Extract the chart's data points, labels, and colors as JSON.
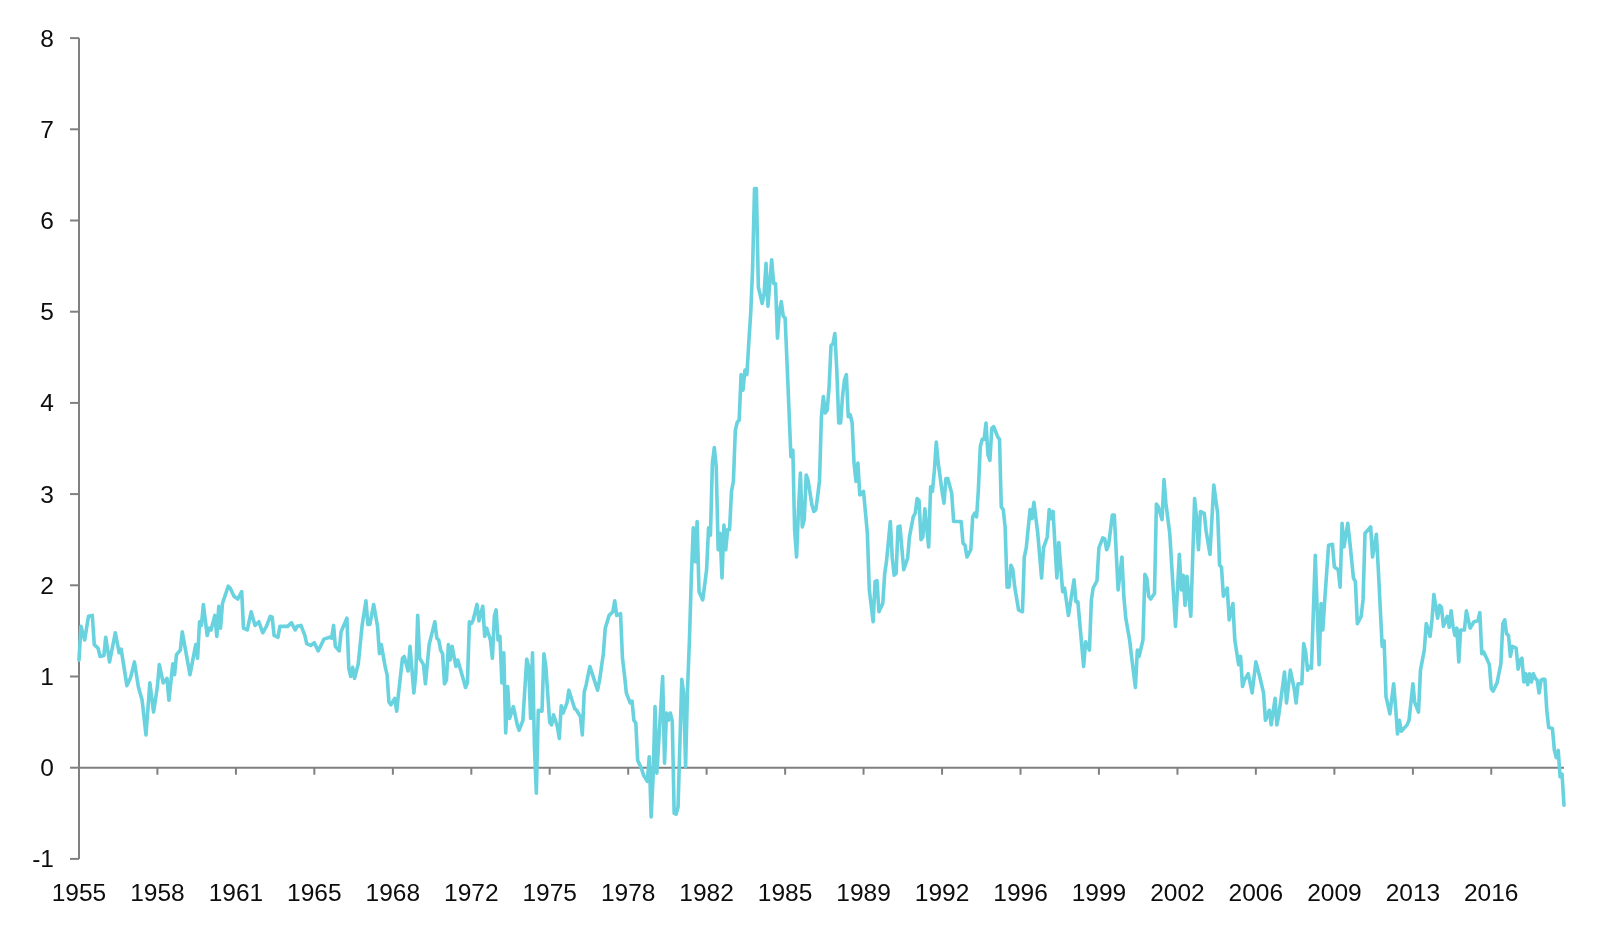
{
  "chart_data": {
    "type": "line",
    "x": [
      "1955-01",
      "1955-02",
      "1955-04",
      "1955-06",
      "1955-08",
      "1955-09",
      "1955-11",
      "1955-12",
      "1956-02",
      "1956-03",
      "1956-05",
      "1956-08",
      "1956-10",
      "1956-11",
      "1957-02",
      "1957-04",
      "1957-06",
      "1957-08",
      "1957-10",
      "1957-12",
      "1958-02",
      "1958-04",
      "1958-06",
      "1958-07",
      "1958-09",
      "1958-11",
      "1958-12",
      "1959-02",
      "1959-03",
      "1959-04",
      "1959-06",
      "1959-07",
      "1959-11",
      "1960-02",
      "1960-03",
      "1960-04",
      "1960-05",
      "1960-06",
      "1960-08",
      "1960-09",
      "1960-10",
      "1960-12",
      "1961-01",
      "1961-02",
      "1961-03",
      "1961-04",
      "1961-07",
      "1961-08",
      "1961-10",
      "1961-12",
      "1962-02",
      "1962-03",
      "1962-05",
      "1962-07",
      "1962-09",
      "1962-11",
      "1963-01",
      "1963-03",
      "1963-05",
      "1963-06",
      "1963-07",
      "1963-09",
      "1963-10",
      "1964-02",
      "1964-04",
      "1964-06",
      "1964-07",
      "1964-09",
      "1964-11",
      "1964-12",
      "1965-02",
      "1965-04",
      "1965-06",
      "1965-09",
      "1965-12",
      "1966-01",
      "1966-02",
      "1966-03",
      "1966-05",
      "1966-06",
      "1966-09",
      "1966-10",
      "1966-11",
      "1966-12",
      "1967-01",
      "1967-03",
      "1967-05",
      "1967-07",
      "1967-08",
      "1967-09",
      "1967-11",
      "1968-01",
      "1968-02",
      "1968-03",
      "1968-05",
      "1968-06",
      "1968-07",
      "1968-08",
      "1968-10",
      "1968-11",
      "1968-12",
      "1969-02",
      "1969-03",
      "1969-05",
      "1969-06",
      "1969-08",
      "1969-09",
      "1969-10",
      "1969-11",
      "1970-01",
      "1970-02",
      "1970-04",
      "1970-07",
      "1970-08",
      "1970-09",
      "1970-10",
      "1970-11",
      "1970-12",
      "1971-01",
      "1971-02",
      "1971-03",
      "1971-04",
      "1971-06",
      "1971-07",
      "1971-09",
      "1971-11",
      "1971-12",
      "1972-01",
      "1972-02",
      "1972-03",
      "1972-05",
      "1972-06",
      "1972-08",
      "1972-09",
      "1972-10",
      "1972-12",
      "1973-01",
      "1973-02",
      "1973-03",
      "1973-04",
      "1973-05",
      "1973-06",
      "1973-07",
      "1973-08",
      "1973-09",
      "1973-10",
      "1973-12",
      "1974-02",
      "1974-03",
      "1974-05",
      "1974-07",
      "1974-08",
      "1974-09",
      "1974-10",
      "1974-11",
      "1974-12",
      "1975-01",
      "1975-03",
      "1975-04",
      "1975-05",
      "1975-07",
      "1975-08",
      "1975-09",
      "1975-11",
      "1975-12",
      "1976-01",
      "1976-02",
      "1976-04",
      "1976-05",
      "1976-08",
      "1976-09",
      "1976-11",
      "1976-12",
      "1977-01",
      "1977-02",
      "1977-04",
      "1977-06",
      "1977-08",
      "1977-09",
      "1977-11",
      "1977-12",
      "1978-02",
      "1978-04",
      "1978-05",
      "1978-06",
      "1978-08",
      "1978-09",
      "1978-10",
      "1978-11",
      "1979-01",
      "1979-02",
      "1979-03",
      "1979-04",
      "1979-05",
      "1979-07",
      "1979-08",
      "1979-10",
      "1979-11",
      "1979-12",
      "1980-01",
      "1980-02",
      "1980-03",
      "1980-06",
      "1980-07",
      "1980-08",
      "1980-09",
      "1980-10",
      "1980-11",
      "1980-12",
      "1981-01",
      "1981-02",
      "1981-04",
      "1981-05",
      "1981-06",
      "1981-07",
      "1981-08",
      "1981-09",
      "1981-10",
      "1981-11",
      "1981-12",
      "1982-01",
      "1982-03",
      "1982-05",
      "1982-06",
      "1982-07",
      "1982-08",
      "1982-09",
      "1982-10",
      "1982-11",
      "1982-12",
      "1983-01",
      "1983-02",
      "1983-03",
      "1983-04",
      "1983-05",
      "1983-06",
      "1983-07",
      "1983-08",
      "1983-09",
      "1983-10",
      "1983-11",
      "1983-12",
      "1984-01",
      "1984-02",
      "1984-03",
      "1984-04",
      "1984-05",
      "1984-06",
      "1984-07",
      "1984-08",
      "1984-09",
      "1984-10",
      "1984-11",
      "1984-12",
      "1985-01",
      "1985-03",
      "1985-04",
      "1985-05",
      "1985-06",
      "1985-07",
      "1985-08",
      "1985-09",
      "1985-10",
      "1985-11",
      "1986-01",
      "1986-02",
      "1986-03",
      "1986-04",
      "1986-05",
      "1986-06",
      "1986-07",
      "1986-08",
      "1986-09",
      "1986-10",
      "1986-12",
      "1987-01",
      "1987-02",
      "1987-03",
      "1987-04",
      "1987-05",
      "1987-06",
      "1987-07",
      "1987-08",
      "1987-09",
      "1987-10",
      "1987-11",
      "1987-12",
      "1988-01",
      "1988-02",
      "1988-03",
      "1988-04",
      "1988-05",
      "1988-06",
      "1988-07",
      "1988-08",
      "1988-09",
      "1988-10",
      "1988-11",
      "1988-12",
      "1989-01",
      "1989-03",
      "1989-05",
      "1989-06",
      "1989-08",
      "1989-09",
      "1989-10",
      "1989-11",
      "1990-01",
      "1990-02",
      "1990-03",
      "1990-05",
      "1990-06",
      "1990-07",
      "1990-08",
      "1990-09",
      "1990-10",
      "1990-12",
      "1991-02",
      "1991-03",
      "1991-05",
      "1991-06",
      "1991-07",
      "1991-08",
      "1991-09",
      "1991-10",
      "1991-11",
      "1992-01",
      "1992-02",
      "1992-03",
      "1992-04",
      "1992-05",
      "1992-06",
      "1992-08",
      "1992-09",
      "1992-10",
      "1992-11",
      "1993-01",
      "1993-02",
      "1993-04",
      "1993-06",
      "1993-07",
      "1993-08",
      "1993-09",
      "1993-10",
      "1993-11",
      "1993-12",
      "1994-01",
      "1994-02",
      "1994-03",
      "1994-04",
      "1994-05",
      "1994-06",
      "1994-07",
      "1994-08",
      "1994-09",
      "1994-10",
      "1994-11",
      "1995-01",
      "1995-02",
      "1995-03",
      "1995-04",
      "1995-05",
      "1995-06",
      "1995-07",
      "1995-08",
      "1995-09",
      "1995-10",
      "1995-12",
      "1996-02",
      "1996-03",
      "1996-04",
      "1996-06",
      "1996-07",
      "1996-08",
      "1996-10",
      "1996-12",
      "1997-01",
      "1997-03",
      "1997-04",
      "1997-05",
      "1997-06",
      "1997-08",
      "1997-09",
      "1997-11",
      "1997-12",
      "1998-02",
      "1998-05",
      "1998-06",
      "1998-07",
      "1998-10",
      "1998-11",
      "1999-01",
      "1999-02",
      "1999-03",
      "1999-05",
      "1999-06",
      "1999-08",
      "1999-09",
      "1999-10",
      "1999-11",
      "2000-01",
      "2000-02",
      "2000-04",
      "2000-06",
      "2000-07",
      "2000-08",
      "2000-10",
      "2000-11",
      "2001-01",
      "2001-02",
      "2001-03",
      "2001-05",
      "2001-06",
      "2001-07",
      "2001-08",
      "2001-09",
      "2001-11",
      "2001-12",
      "2002-01",
      "2002-03",
      "2002-04",
      "2002-05",
      "2002-07",
      "2002-10",
      "2002-12",
      "2003-01",
      "2003-02",
      "2003-03",
      "2003-04",
      "2003-06",
      "2003-08",
      "2003-09",
      "2003-10",
      "2003-11",
      "2004-01",
      "2004-02",
      "2004-04",
      "2004-06",
      "2004-08",
      "2004-09",
      "2004-10",
      "2004-11",
      "2005-01",
      "2005-02",
      "2005-04",
      "2005-05",
      "2005-07",
      "2005-08",
      "2005-09",
      "2005-10",
      "2005-12",
      "2006-02",
      "2006-04",
      "2006-06",
      "2006-08",
      "2006-09",
      "2006-11",
      "2006-12",
      "2007-02",
      "2007-03",
      "2007-04",
      "2007-07",
      "2007-08",
      "2007-10",
      "2007-12",
      "2008-01",
      "2008-02",
      "2008-04",
      "2008-05",
      "2008-06",
      "2008-07",
      "2008-08",
      "2008-09",
      "2008-11",
      "2008-12",
      "2009-01",
      "2009-02",
      "2009-03",
      "2009-04",
      "2009-06",
      "2009-08",
      "2009-09",
      "2009-11",
      "2009-12",
      "2010-01",
      "2010-02",
      "2010-04",
      "2010-05",
      "2010-07",
      "2010-08",
      "2010-09",
      "2010-11",
      "2010-12",
      "2011-01",
      "2011-04",
      "2011-05",
      "2011-07",
      "2011-08",
      "2011-10",
      "2011-11",
      "2011-12",
      "2012-02",
      "2012-04",
      "2012-05",
      "2012-06",
      "2012-07",
      "2012-08",
      "2012-11",
      "2012-12",
      "2013-02",
      "2013-03",
      "2013-05",
      "2013-06",
      "2013-08",
      "2013-09",
      "2013-11",
      "2013-12",
      "2014-01",
      "2014-03",
      "2014-04",
      "2014-05",
      "2014-06",
      "2014-08",
      "2014-09",
      "2014-10",
      "2014-11",
      "2014-12",
      "2015-01",
      "2015-02",
      "2015-03",
      "2015-05",
      "2015-06",
      "2015-08",
      "2015-10",
      "2015-12",
      "2016-01",
      "2016-02",
      "2016-03",
      "2016-05",
      "2016-06",
      "2016-07",
      "2016-08",
      "2016-10",
      "2016-12",
      "2017-01",
      "2017-02",
      "2017-03",
      "2017-04",
      "2017-05",
      "2017-06",
      "2017-08",
      "2017-09",
      "2017-10",
      "2017-11",
      "2017-12",
      "2018-01",
      "2018-02",
      "2018-03",
      "2018-04",
      "2018-05",
      "2018-06",
      "2018-07",
      "2018-08",
      "2018-09",
      "2018-10",
      "2018-11",
      "2018-12",
      "2019-01",
      "2019-03",
      "2019-04",
      "2019-05",
      "2019-06",
      "2019-07",
      "2019-08",
      "2019-09"
    ],
    "series": [
      {
        "color": "#68d2de",
        "values": [
          1.18,
          1.55,
          1.4,
          1.66,
          1.67,
          1.35,
          1.31,
          1.22,
          1.23,
          1.43,
          1.16,
          1.48,
          1.26,
          1.3,
          0.9,
          0.99,
          1.16,
          0.89,
          0.74,
          0.36,
          0.93,
          0.61,
          0.89,
          1.13,
          0.93,
          0.98,
          0.74,
          1.14,
          1.02,
          1.24,
          1.29,
          1.49,
          1.02,
          1.35,
          1.2,
          1.6,
          1.56,
          1.79,
          1.45,
          1.53,
          1.51,
          1.67,
          1.44,
          1.77,
          1.53,
          1.8,
          1.99,
          1.97,
          1.88,
          1.85,
          1.93,
          1.53,
          1.51,
          1.71,
          1.56,
          1.6,
          1.48,
          1.55,
          1.66,
          1.65,
          1.45,
          1.43,
          1.55,
          1.55,
          1.59,
          1.51,
          1.55,
          1.56,
          1.45,
          1.36,
          1.34,
          1.37,
          1.28,
          1.41,
          1.43,
          1.42,
          1.56,
          1.33,
          1.28,
          1.49,
          1.64,
          1.09,
          1.0,
          1.1,
          0.98,
          1.14,
          1.56,
          1.83,
          1.57,
          1.57,
          1.79,
          1.55,
          1.25,
          1.35,
          1.11,
          1.02,
          0.72,
          0.69,
          0.76,
          0.62,
          0.82,
          1.2,
          1.22,
          1.06,
          1.33,
          0.82,
          1.03,
          1.67,
          1.2,
          1.13,
          0.92,
          1.35,
          1.6,
          1.42,
          1.4,
          1.29,
          1.25,
          0.92,
          0.96,
          1.35,
          1.18,
          1.33,
          1.11,
          1.18,
          1.03,
          0.88,
          0.93,
          1.6,
          1.58,
          1.62,
          1.79,
          1.61,
          1.77,
          1.44,
          1.53,
          1.4,
          1.2,
          1.66,
          1.73,
          1.4,
          1.44,
          0.93,
          1.26,
          0.38,
          0.89,
          0.54,
          0.67,
          0.47,
          0.41,
          0.52,
          1.19,
          1.11,
          0.54,
          1.26,
          0.23,
          -0.28,
          0.63,
          0.62,
          1.25,
          1.11,
          0.5,
          0.47,
          0.58,
          0.45,
          0.32,
          0.68,
          0.6,
          0.71,
          0.85,
          0.65,
          0.63,
          0.56,
          0.36,
          0.83,
          0.91,
          1.11,
          0.98,
          0.85,
          0.96,
          1.25,
          1.53,
          1.67,
          1.71,
          1.83,
          1.67,
          1.69,
          1.2,
          1.03,
          0.82,
          0.71,
          0.73,
          0.52,
          0.49,
          0.08,
          -0.01,
          -0.08,
          -0.15,
          0.12,
          -0.54,
          -0.1,
          0.67,
          -0.06,
          1.0,
          0.05,
          0.6,
          0.52,
          0.6,
          0.51,
          -0.5,
          -0.51,
          -0.43,
          0.97,
          0.82,
          0.01,
          0.85,
          1.4,
          2.1,
          2.63,
          2.26,
          2.7,
          1.93,
          1.84,
          2.17,
          2.63,
          2.55,
          3.34,
          3.51,
          3.3,
          2.39,
          2.57,
          2.08,
          2.66,
          2.39,
          2.61,
          2.61,
          3.03,
          3.14,
          3.7,
          3.79,
          3.81,
          4.31,
          4.14,
          4.36,
          4.31,
          4.65,
          4.98,
          5.46,
          6.35,
          6.35,
          5.27,
          5.18,
          5.09,
          5.2,
          5.53,
          5.06,
          5.57,
          5.31,
          5.31,
          4.71,
          5.0,
          5.11,
          4.95,
          4.93,
          4.43,
          3.41,
          3.48,
          2.61,
          2.31,
          2.83,
          3.23,
          2.64,
          2.72,
          3.21,
          3.15,
          2.88,
          2.81,
          2.83,
          2.97,
          3.15,
          3.85,
          4.07,
          3.89,
          3.92,
          4.18,
          4.63,
          4.65,
          4.76,
          4.36,
          3.78,
          3.78,
          4.07,
          4.25,
          4.31,
          3.85,
          3.87,
          3.78,
          3.34,
          3.14,
          3.34,
          2.99,
          3.03,
          2.57,
          1.95,
          1.6,
          2.04,
          2.05,
          1.71,
          1.8,
          2.13,
          2.26,
          2.7,
          2.3,
          2.11,
          2.13,
          2.64,
          2.65,
          2.17,
          2.3,
          2.53,
          2.75,
          2.79,
          2.95,
          2.93,
          2.5,
          2.53,
          2.84,
          2.42,
          3.08,
          3.03,
          3.26,
          3.57,
          3.34,
          3.03,
          2.9,
          3.17,
          3.17,
          3.01,
          2.7,
          2.7,
          2.7,
          2.46,
          2.44,
          2.31,
          2.35,
          2.39,
          2.75,
          2.79,
          2.75,
          3.04,
          3.52,
          3.6,
          3.6,
          3.78,
          3.43,
          3.37,
          3.72,
          3.74,
          3.63,
          3.6,
          2.86,
          2.83,
          2.64,
          1.98,
          1.98,
          2.22,
          2.17,
          1.98,
          1.73,
          1.71,
          2.31,
          2.41,
          2.83,
          2.73,
          2.91,
          2.57,
          2.08,
          2.41,
          2.53,
          2.83,
          2.73,
          2.81,
          2.08,
          2.47,
          1.93,
          1.97,
          1.67,
          2.06,
          1.82,
          1.82,
          1.11,
          1.38,
          1.29,
          1.84,
          1.97,
          2.05,
          2.41,
          2.52,
          2.51,
          2.39,
          2.44,
          2.77,
          2.77,
          1.95,
          2.31,
          1.88,
          1.64,
          1.4,
          1.22,
          0.88,
          1.29,
          1.22,
          1.4,
          2.12,
          2.08,
          1.88,
          1.85,
          1.91,
          2.89,
          2.86,
          2.72,
          3.16,
          2.9,
          2.57,
          1.55,
          2.34,
          1.95,
          2.11,
          1.78,
          2.1,
          1.66,
          2.95,
          2.73,
          2.39,
          2.81,
          2.79,
          2.59,
          2.34,
          3.1,
          2.79,
          2.22,
          2.2,
          1.88,
          1.97,
          1.62,
          1.8,
          1.4,
          1.13,
          1.22,
          0.89,
          0.96,
          1.03,
          0.82,
          1.16,
          1.0,
          0.82,
          0.52,
          0.63,
          0.47,
          0.76,
          0.47,
          0.58,
          1.05,
          0.71,
          1.07,
          0.87,
          0.71,
          0.92,
          0.92,
          1.36,
          1.27,
          1.07,
          1.11,
          1.09,
          2.33,
          1.73,
          1.13,
          1.8,
          1.51,
          1.84,
          2.44,
          2.45,
          2.2,
          2.17,
          1.98,
          2.68,
          2.42,
          2.68,
          2.5,
          2.08,
          2.04,
          1.58,
          1.66,
          1.84,
          2.57,
          2.64,
          2.31,
          2.56,
          2.17,
          1.33,
          1.39,
          0.78,
          0.59,
          0.92,
          0.67,
          0.37,
          0.52,
          0.4,
          0.47,
          0.52,
          0.92,
          0.72,
          0.61,
          1.07,
          1.29,
          1.58,
          1.44,
          1.62,
          1.9,
          1.64,
          1.78,
          1.76,
          1.55,
          1.66,
          1.54,
          1.72,
          1.55,
          1.45,
          1.53,
          1.16,
          1.51,
          1.51,
          1.72,
          1.53,
          1.6,
          1.61,
          1.7,
          1.25,
          1.27,
          1.18,
          1.13,
          0.87,
          0.84,
          0.93,
          1.14,
          1.58,
          1.62,
          1.47,
          1.45,
          1.22,
          1.33,
          1.31,
          1.08,
          1.18,
          1.2,
          0.94,
          1.03,
          0.91,
          1.03,
          0.94,
          1.03,
          0.98,
          0.96,
          0.82,
          0.96,
          0.97,
          0.97,
          0.63,
          0.44,
          0.43,
          0.19,
          0.11,
          0.19,
          -0.1,
          -0.07,
          -0.41
        ]
      }
    ],
    "xlim": [
      "1955-01",
      "2019-09"
    ],
    "xticks": [
      {
        "value": "1955-01",
        "label": "1955"
      },
      {
        "value": "1958-06",
        "label": "1958"
      },
      {
        "value": "1961-11",
        "label": "1961"
      },
      {
        "value": "1965-04",
        "label": "1965"
      },
      {
        "value": "1968-09",
        "label": "1968"
      },
      {
        "value": "1972-02",
        "label": "1972"
      },
      {
        "value": "1975-07",
        "label": "1975"
      },
      {
        "value": "1978-12",
        "label": "1978"
      },
      {
        "value": "1982-05",
        "label": "1982"
      },
      {
        "value": "1985-10",
        "label": "1985"
      },
      {
        "value": "1989-03",
        "label": "1989"
      },
      {
        "value": "1992-08",
        "label": "1992"
      },
      {
        "value": "1996-01",
        "label": "1996"
      },
      {
        "value": "1999-06",
        "label": "1999"
      },
      {
        "value": "2002-11",
        "label": "2002"
      },
      {
        "value": "2006-04",
        "label": "2006"
      },
      {
        "value": "2009-09",
        "label": "2009"
      },
      {
        "value": "2013-02",
        "label": "2013"
      },
      {
        "value": "2016-07",
        "label": "2016"
      }
    ],
    "ylim": [
      -1,
      8
    ],
    "yticks": [
      -1,
      0,
      1,
      2,
      3,
      4,
      5,
      6,
      7,
      8
    ]
  }
}
